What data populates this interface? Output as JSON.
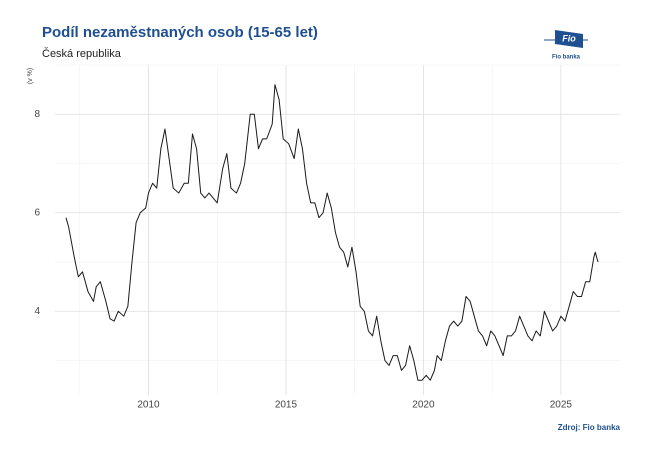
{
  "chart_data": {
    "type": "line",
    "title": "Podíl nezaměstnaných osob (15-65 let)",
    "subtitle": "Česká republika",
    "y_label": "(v %)",
    "source": "Zdroj: Fio banka",
    "logo": {
      "mark": "Fio",
      "name": "Fio banka"
    },
    "xlim": [
      2006.6,
      2027.15
    ],
    "xticks": [
      2010,
      2015,
      2020,
      2025
    ],
    "xminor": [
      2007.5,
      2012.5,
      2017.5,
      2022.5
    ],
    "ylim": [
      2.3,
      9.0
    ],
    "yticks": [
      4,
      6,
      8
    ],
    "yminor": [
      3,
      5,
      7,
      9
    ],
    "grid": true,
    "series": [
      {
        "color": "#1a1a1a",
        "x": [
          2007.0,
          2007.1,
          2007.3,
          2007.45,
          2007.6,
          2007.8,
          2008.0,
          2008.1,
          2008.25,
          2008.45,
          2008.6,
          2008.75,
          2008.9,
          2009.1,
          2009.25,
          2009.4,
          2009.55,
          2009.7,
          2009.9,
          2010.0,
          2010.15,
          2010.3,
          2010.45,
          2010.6,
          2010.75,
          2010.9,
          2011.1,
          2011.3,
          2011.45,
          2011.6,
          2011.75,
          2011.9,
          2012.05,
          2012.2,
          2012.35,
          2012.5,
          2012.7,
          2012.85,
          2013.0,
          2013.2,
          2013.35,
          2013.5,
          2013.7,
          2013.85,
          2014.0,
          2014.15,
          2014.3,
          2014.5,
          2014.6,
          2014.75,
          2014.9,
          2015.1,
          2015.3,
          2015.45,
          2015.6,
          2015.75,
          2015.9,
          2016.05,
          2016.2,
          2016.35,
          2016.5,
          2016.65,
          2016.8,
          2016.95,
          2017.1,
          2017.25,
          2017.4,
          2017.55,
          2017.7,
          2017.85,
          2018.0,
          2018.15,
          2018.3,
          2018.45,
          2018.6,
          2018.75,
          2018.9,
          2019.05,
          2019.2,
          2019.35,
          2019.5,
          2019.65,
          2019.8,
          2019.95,
          2020.1,
          2020.25,
          2020.4,
          2020.5,
          2020.65,
          2020.8,
          2020.95,
          2021.1,
          2021.25,
          2021.4,
          2021.55,
          2021.7,
          2021.85,
          2022.0,
          2022.15,
          2022.3,
          2022.45,
          2022.6,
          2022.75,
          2022.9,
          2023.05,
          2023.2,
          2023.35,
          2023.5,
          2023.65,
          2023.8,
          2023.95,
          2024.1,
          2024.25,
          2024.4,
          2024.55,
          2024.7,
          2024.85,
          2025.0,
          2025.15,
          2025.3,
          2025.45,
          2025.6,
          2025.75,
          2025.9,
          2026.05,
          2026.2,
          2026.25,
          2026.35
        ],
        "values": [
          5.9,
          5.7,
          5.1,
          4.7,
          4.8,
          4.4,
          4.2,
          4.5,
          4.6,
          4.2,
          3.85,
          3.8,
          4.0,
          3.9,
          4.1,
          5.0,
          5.8,
          6.0,
          6.1,
          6.4,
          6.6,
          6.5,
          7.3,
          7.7,
          7.1,
          6.5,
          6.4,
          6.6,
          6.6,
          7.6,
          7.3,
          6.4,
          6.3,
          6.4,
          6.3,
          6.2,
          6.9,
          7.2,
          6.5,
          6.4,
          6.6,
          7.0,
          8.0,
          8.0,
          7.3,
          7.5,
          7.5,
          7.8,
          8.6,
          8.3,
          7.5,
          7.4,
          7.1,
          7.7,
          7.3,
          6.6,
          6.2,
          6.2,
          5.9,
          6.0,
          6.4,
          6.1,
          5.6,
          5.3,
          5.2,
          4.9,
          5.3,
          4.8,
          4.1,
          4.0,
          3.6,
          3.5,
          3.9,
          3.4,
          3.0,
          2.9,
          3.1,
          3.1,
          2.8,
          2.9,
          3.3,
          3.0,
          2.6,
          2.6,
          2.7,
          2.6,
          2.8,
          3.1,
          3.0,
          3.4,
          3.7,
          3.8,
          3.7,
          3.8,
          4.3,
          4.2,
          3.9,
          3.6,
          3.5,
          3.3,
          3.6,
          3.5,
          3.3,
          3.1,
          3.5,
          3.5,
          3.6,
          3.9,
          3.7,
          3.5,
          3.4,
          3.6,
          3.5,
          4.0,
          3.8,
          3.6,
          3.7,
          3.9,
          3.8,
          4.1,
          4.4,
          4.3,
          4.3,
          4.6,
          4.6,
          5.1,
          5.2,
          5.0
        ]
      }
    ]
  }
}
